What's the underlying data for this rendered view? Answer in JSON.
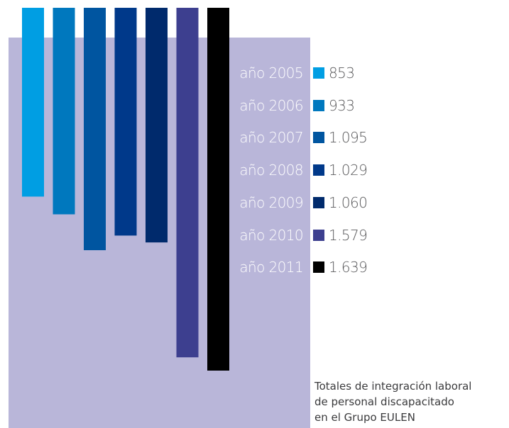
{
  "chart_data": {
    "type": "bar",
    "categories": [
      "año 2005",
      "año 2006",
      "año 2007",
      "año 2008",
      "año 2009",
      "año 2010",
      "año 2011"
    ],
    "values": [
      853,
      933,
      1095,
      1029,
      1060,
      1579,
      1639
    ],
    "value_labels": [
      "853",
      "933",
      "1.095",
      "1.029",
      "1.060",
      "1.579",
      "1.639"
    ],
    "colors": [
      "#009ee3",
      "#0078be",
      "#0055a0",
      "#00398a",
      "#002a6c",
      "#3d3f8f",
      "#000000"
    ],
    "orientation": "vertical, bars hanging from top",
    "legend_placement": "right",
    "grid": false
  },
  "caption": {
    "line1": "Totales de integración laboral",
    "line2": "de personal discapacitado",
    "line3": "en el Grupo EULEN"
  },
  "colors": {
    "panel": "#b9b6d9",
    "year_text": "#ffffff",
    "value_text": "#59595b"
  }
}
